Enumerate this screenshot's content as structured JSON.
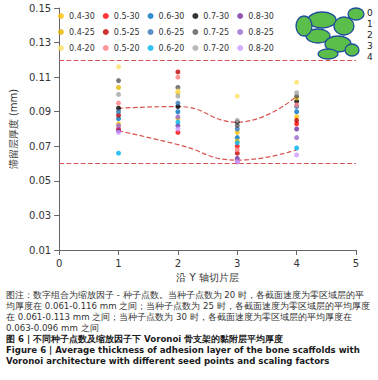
{
  "chart_data": {
    "type": "scatter",
    "x_label": "沿 Y 轴切片层",
    "y_label": "滞留层厚度 (mm)",
    "xlim": [
      0,
      5
    ],
    "xticks": [
      0,
      1,
      2,
      3,
      4,
      5
    ],
    "ylim": [
      0.01,
      0.15
    ],
    "yticks": [
      0.01,
      0.03,
      0.05,
      0.07,
      0.09,
      0.11,
      0.13,
      0.15
    ],
    "grid": false,
    "legend": "top-left",
    "marker": "circle",
    "series": [
      {
        "name": "0.4-30",
        "color": "#FFC000",
        "x": [
          1,
          2,
          3,
          4
        ],
        "values": [
          0.083,
          0.086,
          0.078,
          0.087
        ]
      },
      {
        "name": "0.5-30",
        "color": "#FF0000",
        "x": [
          1,
          2,
          3,
          4
        ],
        "values": [
          0.08,
          0.078,
          0.07,
          0.083
        ]
      },
      {
        "name": "0.6-30",
        "color": "#0070C0",
        "x": [
          1,
          2,
          3,
          4
        ],
        "values": [
          0.086,
          0.09,
          0.075,
          0.09
        ]
      },
      {
        "name": "0.7-30",
        "color": "#000000",
        "x": [
          1,
          2,
          3,
          4
        ],
        "values": [
          0.092,
          0.093,
          0.084,
          0.096
        ]
      },
      {
        "name": "0.8-30",
        "color": "#7030A0",
        "x": [
          1,
          2,
          3,
          4
        ],
        "values": [
          0.079,
          0.082,
          0.063,
          0.08
        ]
      },
      {
        "name": "0.4-25",
        "color": "#E6B800",
        "x": [
          1,
          2,
          3,
          4
        ],
        "values": [
          0.104,
          0.101,
          0.073,
          0.098
        ]
      },
      {
        "name": "0.5-25",
        "color": "#C00000",
        "x": [
          1,
          2,
          3,
          4
        ],
        "values": [
          0.088,
          0.113,
          0.066,
          0.085
        ]
      },
      {
        "name": "0.6-25",
        "color": "#2E75B6",
        "x": [
          1,
          2,
          3,
          4
        ],
        "values": [
          0.09,
          0.095,
          0.08,
          0.093
        ]
      },
      {
        "name": "0.7-25",
        "color": "#595959",
        "x": [
          1,
          2,
          3,
          4
        ],
        "values": [
          0.108,
          0.104,
          0.082,
          0.099
        ]
      },
      {
        "name": "0.8-25",
        "color": "#9966CC",
        "x": [
          1,
          2,
          3,
          4
        ],
        "values": [
          0.082,
          0.087,
          0.061,
          0.075
        ]
      },
      {
        "name": "0.4-20",
        "color": "#FFE066",
        "x": [
          1,
          2,
          3,
          4
        ],
        "values": [
          0.116,
          0.102,
          0.099,
          0.107
        ]
      },
      {
        "name": "0.5-20",
        "color": "#FF7C80",
        "x": [
          1,
          2,
          3,
          4
        ],
        "values": [
          0.095,
          0.11,
          0.068,
          0.094
        ]
      },
      {
        "name": "0.6-20",
        "color": "#00B0F0",
        "x": [
          1,
          2,
          3,
          4
        ],
        "values": [
          0.066,
          0.084,
          0.072,
          0.069
        ]
      },
      {
        "name": "0.7-20",
        "color": "#A6A6A6",
        "x": [
          1,
          2,
          3,
          4
        ],
        "values": [
          0.1,
          0.099,
          0.085,
          0.101
        ]
      },
      {
        "name": "0.8-20",
        "color": "#CC99FF",
        "x": [
          1,
          2,
          3,
          4
        ],
        "values": [
          0.078,
          0.08,
          0.061,
          0.065
        ]
      }
    ],
    "reference_lines": [
      {
        "y": 0.116,
        "color": "#D9534F",
        "line_style": "dashed"
      },
      {
        "y": 0.061,
        "color": "#D9534F",
        "line_style": "dashed"
      }
    ],
    "trend_lines": [
      {
        "color": "#D9534F",
        "line_style": "dashed",
        "x": [
          1,
          2,
          3,
          4
        ],
        "values": [
          0.092,
          0.093,
          0.084,
          0.099
        ]
      },
      {
        "color": "#D9534F",
        "line_style": "dashed",
        "x": [
          1,
          2,
          3,
          4
        ],
        "values": [
          0.079,
          0.071,
          0.062,
          0.068
        ]
      }
    ],
    "annotations": [
      "0",
      "1",
      "2",
      "3",
      "4"
    ],
    "note": "图注：数字组合为缩放因子 - 种子点数。当种子点数为 20 时，各截面速度为零区域层的平均厚度在 0.061-0.116 mm 之间；当种子点数为 25 时，各截面速度为零区域层的平均厚度在 0.061-0.113 mm 之间；当种子点数为 30 时，各截面速度为零区域层的平均厚度在 0.063-0.096 mm 之间",
    "title": "图 6 | 不同种子点数及缩放因子下 Voronoi 骨支架的黏附层平均厚度",
    "subtitle": "Figure 6 | Average thickness of adhesion layer of the bone scaffolds with Voronoi architecture with different seed points and scaling factors"
  }
}
